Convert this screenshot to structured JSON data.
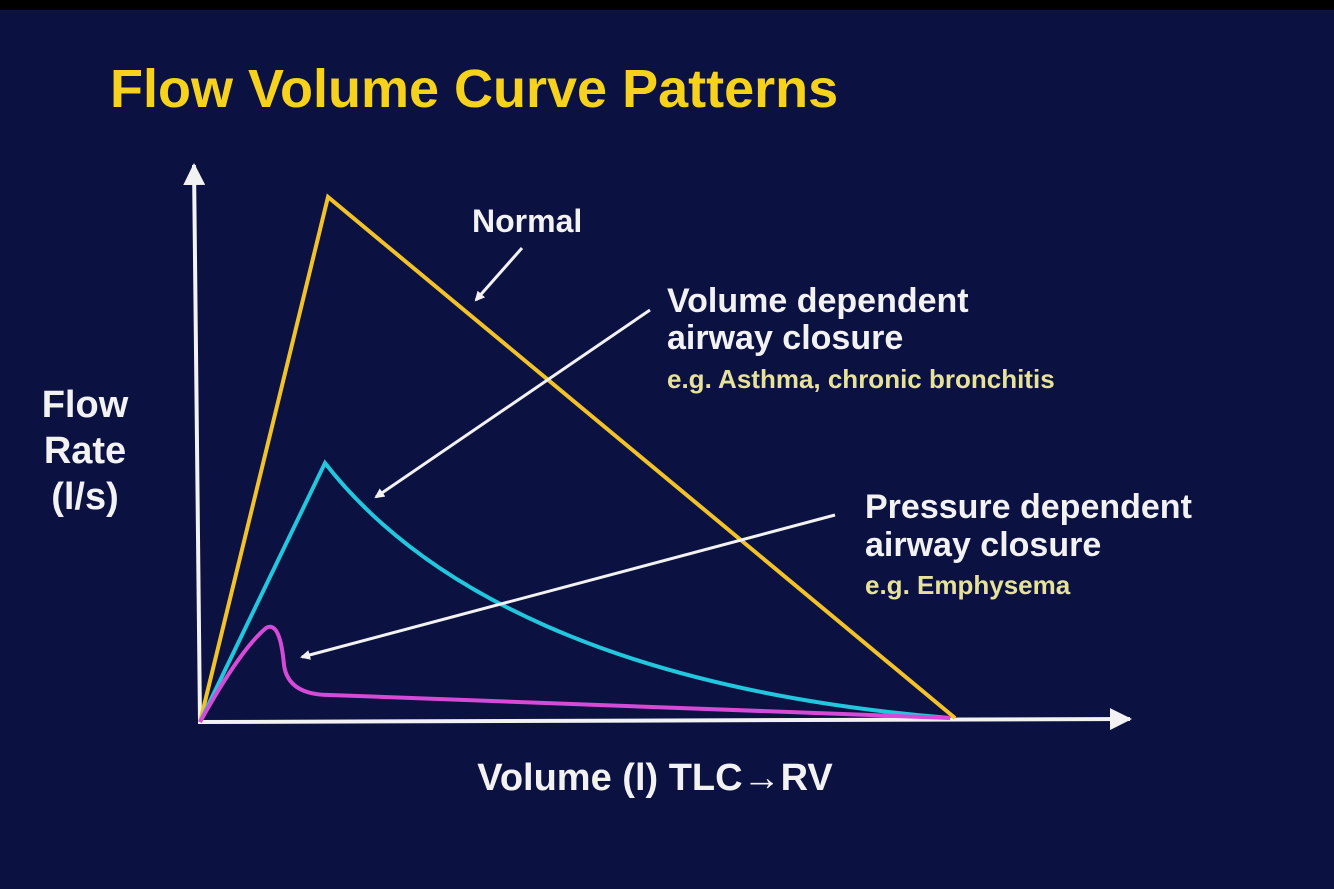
{
  "title": "Flow Volume Curve Patterns",
  "y_axis_label": [
    "Flow",
    "Rate",
    "(l/s)"
  ],
  "x_axis_label": "Volume (l) TLC→RV",
  "annotations": [
    {
      "lines": [
        "Normal"
      ]
    },
    {
      "lines": [
        "Volume dependent",
        "airway closure"
      ],
      "example": "e.g. Asthma, chronic bronchitis"
    },
    {
      "lines": [
        "Pressure dependent",
        "airway closure"
      ],
      "example": "e.g. Emphysema"
    }
  ]
}
